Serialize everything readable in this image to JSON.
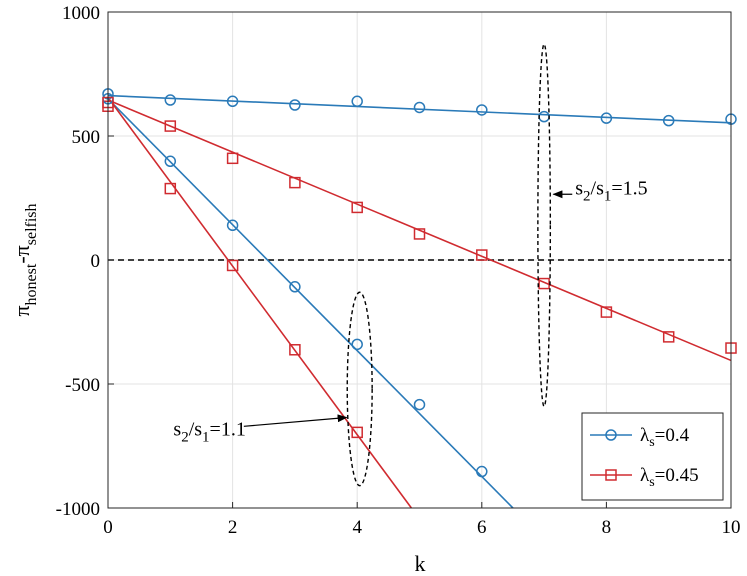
{
  "chart_data": {
    "type": "line",
    "xlabel": "k",
    "ylabel": {
      "base1": "π",
      "sub1": "honest",
      "mid": "-π",
      "sub2": "selfish"
    },
    "xlim": [
      0,
      10
    ],
    "ylim": [
      -1000,
      1000
    ],
    "xticks": [
      0,
      2,
      4,
      6,
      8,
      10
    ],
    "yticks": [
      1000,
      500,
      0,
      -500,
      -1000
    ],
    "grid": true,
    "legend_position": "bottom-right",
    "series": [
      {
        "name": {
          "base": "λ",
          "sub": "s",
          "rest": "=0.4"
        },
        "color": "#2a7ab8",
        "marker": "circle",
        "group": "s2/s1=1.5",
        "x": [
          0,
          1,
          2,
          3,
          4,
          5,
          6,
          7,
          8,
          9,
          10
        ],
        "y": [
          670,
          645,
          640,
          625,
          640,
          615,
          605,
          578,
          572,
          562,
          568
        ],
        "fit": {
          "x": [
            0,
            10
          ],
          "y": [
            663,
            553
          ]
        }
      },
      {
        "name": {
          "base": "λ",
          "sub": "s",
          "rest": "=0.45"
        },
        "color": "#d02b30",
        "marker": "square",
        "group": "s2/s1=1.5",
        "x": [
          0,
          1,
          2,
          3,
          4,
          5,
          6,
          7,
          8,
          9,
          10
        ],
        "y": [
          620,
          540,
          410,
          312,
          212,
          105,
          20,
          -95,
          -210,
          -310,
          -355
        ],
        "fit": {
          "x": [
            0,
            10
          ],
          "y": [
            645,
            -405
          ]
        }
      },
      {
        "name": {
          "base": "λ",
          "sub": "s",
          "rest": "=0.4"
        },
        "color": "#2a7ab8",
        "marker": "circle",
        "group": "s2/s1=1.1",
        "x": [
          0,
          1,
          2,
          3,
          4,
          5,
          6
        ],
        "y": [
          650,
          398,
          140,
          -108,
          -340,
          -583,
          -853
        ],
        "fit": {
          "x": [
            0,
            6.5
          ],
          "y": [
            650,
            -1000
          ]
        }
      },
      {
        "name": {
          "base": "λ",
          "sub": "s",
          "rest": "=0.45"
        },
        "color": "#d02b30",
        "marker": "square",
        "group": "s2/s1=1.1",
        "x": [
          0,
          1,
          2,
          3,
          4
        ],
        "y": [
          635,
          288,
          -22,
          -362,
          -695
        ],
        "fit": {
          "x": [
            0,
            4.87
          ],
          "y": [
            655,
            -1000
          ]
        }
      }
    ],
    "annotations": [
      {
        "text": {
          "a": "s",
          "a_sub": "2",
          "mid": "/s",
          "b_sub": "1",
          "rest": "=1.5"
        },
        "ellipse": {
          "cx": 7.0,
          "cy": 140,
          "rx": 0.1,
          "ry": 730
        },
        "arrow_to": [
          7.15,
          265
        ],
        "label_anchor": [
          7.5,
          265
        ]
      },
      {
        "text": {
          "a": "s",
          "a_sub": "2",
          "mid": "/s",
          "b_sub": "1",
          "rest": "=1.1"
        },
        "ellipse": {
          "cx": 4.04,
          "cy": -520,
          "rx": 0.2,
          "ry": 390
        },
        "arrow_to": [
          3.83,
          -635
        ],
        "label_anchor": [
          1.05,
          -707
        ]
      }
    ],
    "legend": [
      {
        "base": "λ",
        "sub": "s",
        "rest": "=0.4",
        "color": "#2a7ab8",
        "marker": "circle"
      },
      {
        "base": "λ",
        "sub": "s",
        "rest": "=0.45",
        "color": "#d02b30",
        "marker": "square"
      }
    ]
  }
}
